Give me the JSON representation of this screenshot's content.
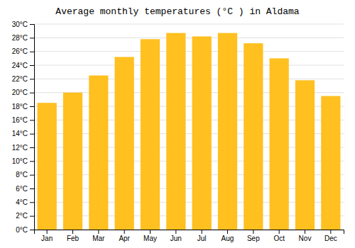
{
  "chart_data": {
    "type": "bar",
    "title": "Average monthly temperatures (°C ) in Aldama",
    "categories": [
      "Jan",
      "Feb",
      "Mar",
      "Apr",
      "May",
      "Jun",
      "Jul",
      "Aug",
      "Sep",
      "Oct",
      "Nov",
      "Dec"
    ],
    "values": [
      18.5,
      20.0,
      22.5,
      25.2,
      27.8,
      28.7,
      28.2,
      28.7,
      27.2,
      25.0,
      21.8,
      19.5
    ],
    "color": "#FFC020",
    "ylim": [
      0,
      30
    ],
    "yticks": [
      {
        "value": 0,
        "label": "0°C"
      },
      {
        "value": 2,
        "label": "2°C"
      },
      {
        "value": 4,
        "label": "4°C"
      },
      {
        "value": 6,
        "label": "6°C"
      },
      {
        "value": 8,
        "label": "8°C"
      },
      {
        "value": 10,
        "label": "10°C"
      },
      {
        "value": 12,
        "label": "12°C"
      },
      {
        "value": 14,
        "label": "14°C"
      },
      {
        "value": 16,
        "label": "16°C"
      },
      {
        "value": 18,
        "label": "18°C"
      },
      {
        "value": 20,
        "label": "20°C"
      },
      {
        "value": 22,
        "label": "22°C"
      },
      {
        "value": 24,
        "label": "24°C"
      },
      {
        "value": 26,
        "label": "26°C"
      },
      {
        "value": 28,
        "label": "28°C"
      },
      {
        "value": 30,
        "label": "30°C"
      }
    ],
    "grid": true
  }
}
